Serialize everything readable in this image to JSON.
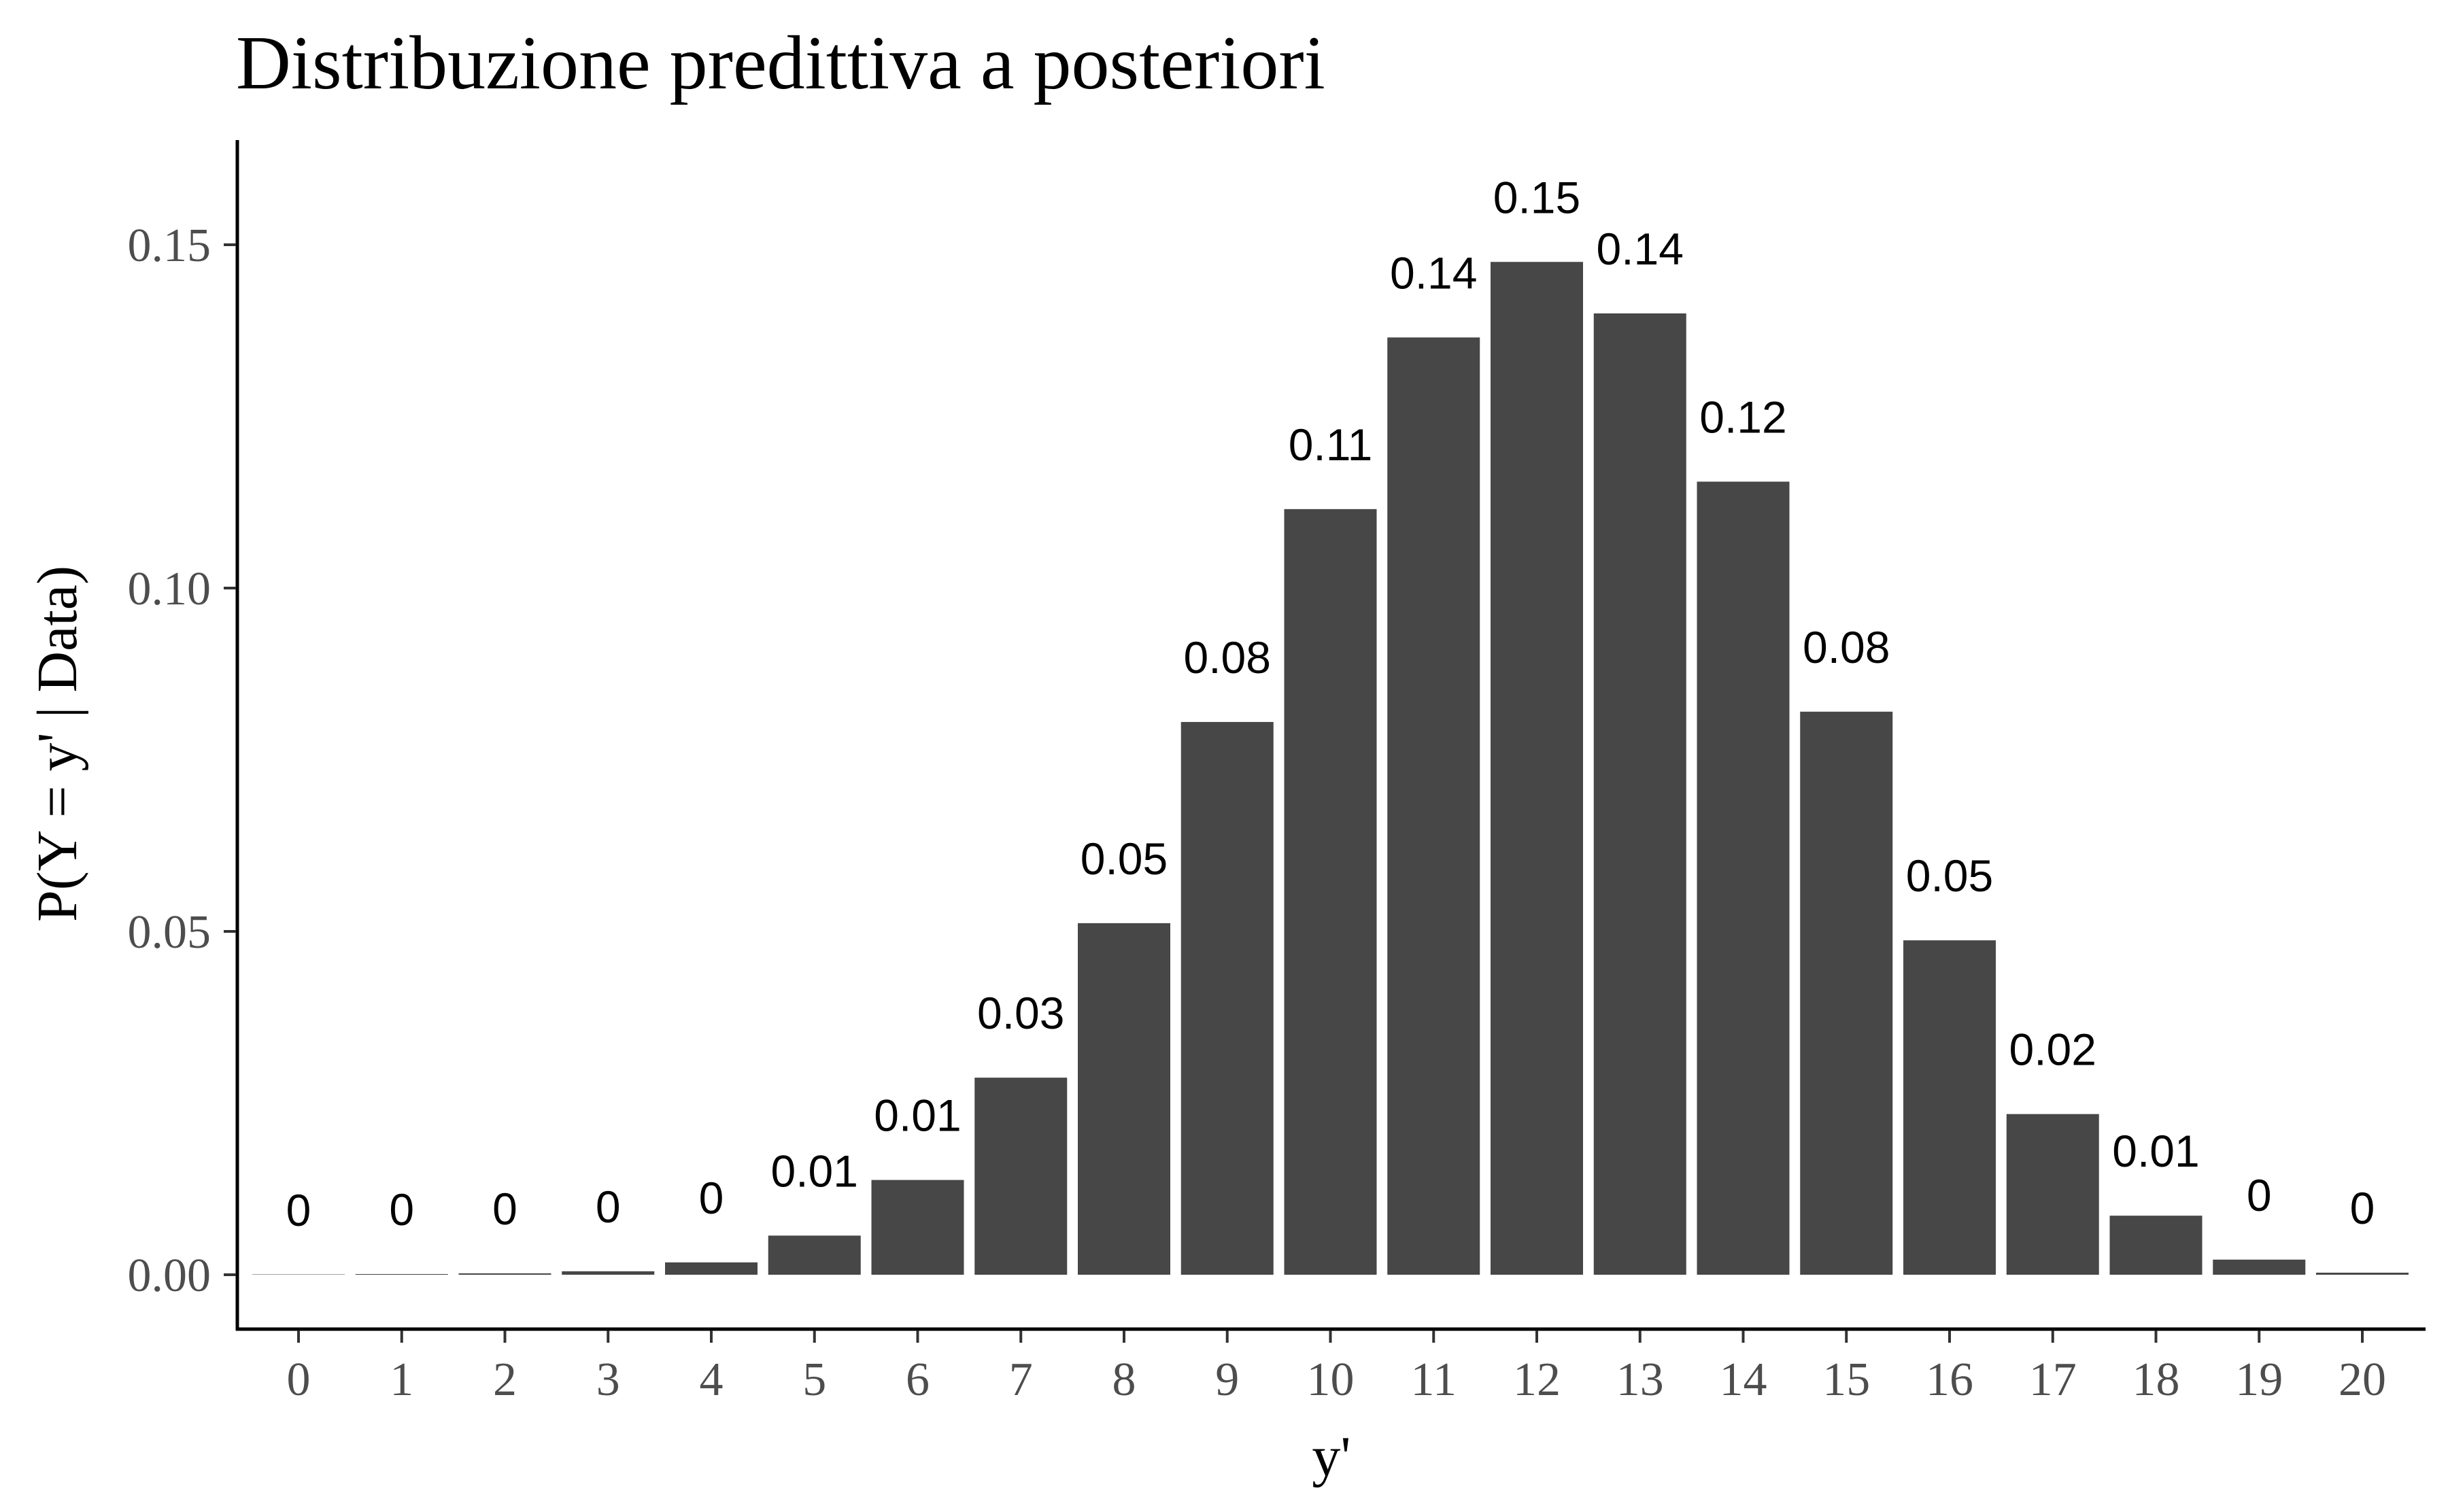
{
  "chart_data": {
    "type": "bar",
    "title": "Distribuzione predittiva a posteriori",
    "xlabel": "y'",
    "ylabel": "P(Y = y' | Data)",
    "categories": [
      "0",
      "1",
      "2",
      "3",
      "4",
      "5",
      "6",
      "7",
      "8",
      "9",
      "10",
      "11",
      "12",
      "13",
      "14",
      "15",
      "16",
      "17",
      "18",
      "19",
      "20"
    ],
    "values": [
      0.0,
      0.0001,
      0.0002,
      0.0005,
      0.0018,
      0.0057,
      0.0138,
      0.0287,
      0.0512,
      0.0805,
      0.1115,
      0.1365,
      0.1475,
      0.14,
      0.1155,
      0.082,
      0.0487,
      0.0234,
      0.0086,
      0.0022,
      0.0003
    ],
    "data_labels": [
      "0",
      "0",
      "0",
      "0",
      "0",
      "0.01",
      "0.01",
      "0.03",
      "0.05",
      "0.08",
      "0.11",
      "0.14",
      "0.15",
      "0.14",
      "0.12",
      "0.08",
      "0.05",
      "0.02",
      "0.01",
      "0",
      "0"
    ],
    "yticks": [
      "0.00",
      "0.05",
      "0.10",
      "0.15"
    ],
    "ytick_values": [
      0,
      0.05,
      0.1,
      0.15
    ],
    "ylim": [
      -0.0075,
      0.165
    ],
    "bar_color": "#474747",
    "grid": false,
    "legend": "none"
  }
}
